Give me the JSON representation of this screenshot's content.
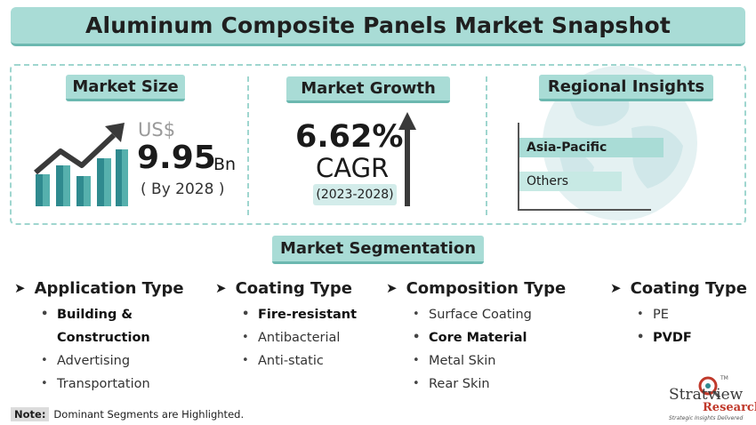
{
  "header": {
    "title": "Aluminum Composite Panels Market Snapshot"
  },
  "market_size": {
    "label": "Market Size",
    "currency": "US$",
    "value": "9.95",
    "unit": "Bn",
    "year_note": "( By 2028 )",
    "icon": "growth-bar-chart-icon"
  },
  "market_growth": {
    "label": "Market Growth",
    "value": "6.62%",
    "metric": "CAGR",
    "period": "(2023-2028)",
    "icon": "up-arrow-icon"
  },
  "regional": {
    "label": "Regional Insights",
    "bars": [
      {
        "name": "Asia-Pacific",
        "share": 1.0
      },
      {
        "name": "Others",
        "share": 0.71
      }
    ],
    "icon": "globe-icon"
  },
  "segmentation": {
    "label": "Market Segmentation",
    "columns": [
      {
        "title": "Application Type",
        "items": [
          {
            "text": "Building &",
            "highlight": true
          },
          {
            "text": "Construction",
            "highlight": true,
            "continuation": true
          },
          {
            "text": "Advertising",
            "highlight": false
          },
          {
            "text": "Transportation",
            "highlight": false
          }
        ]
      },
      {
        "title": "Coating Type",
        "items": [
          {
            "text": "Fire-resistant",
            "highlight": true
          },
          {
            "text": "Antibacterial",
            "highlight": false
          },
          {
            "text": "Anti-static",
            "highlight": false
          }
        ]
      },
      {
        "title": "Composition Type",
        "items": [
          {
            "text": "Surface Coating",
            "highlight": false
          },
          {
            "text": "Core Material",
            "highlight": true
          },
          {
            "text": "Metal Skin",
            "highlight": false
          },
          {
            "text": "Rear Skin",
            "highlight": false
          }
        ]
      },
      {
        "title": "Coating Type",
        "items": [
          {
            "text": "PE",
            "highlight": false
          },
          {
            "text": "PVDF",
            "highlight": true
          }
        ]
      }
    ]
  },
  "note": {
    "label": "Note:",
    "text": "Dominant Segments are Highlighted."
  },
  "logo": {
    "brand": "Stratview",
    "sub": "Research",
    "tagline": "Strategic Insights Delivered",
    "tm": "TM"
  },
  "colors": {
    "accent": "#a9dcd6",
    "accent_dark": "#6cb8b0",
    "bar_dark": "#2f8a8f",
    "bar_mid": "#56b0ad",
    "bar_light": "#a7dcd3",
    "logo_red": "#c0392b"
  }
}
